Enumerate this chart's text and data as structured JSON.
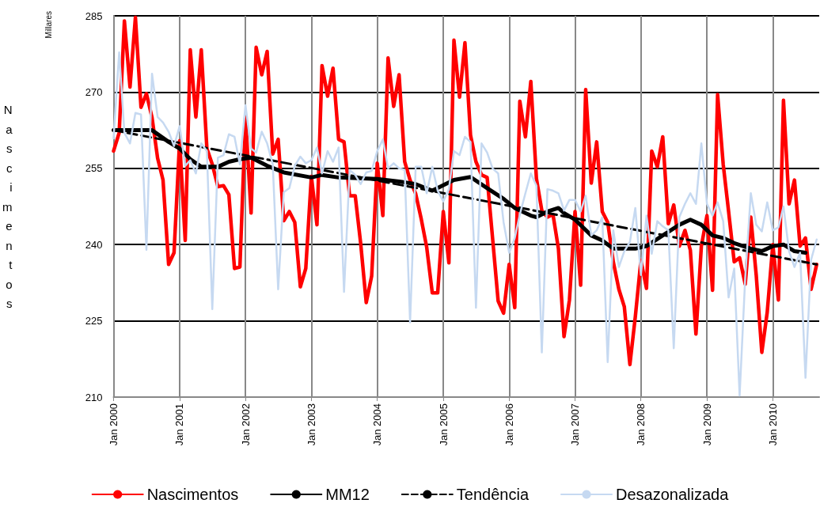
{
  "chart_data": {
    "type": "line",
    "ylabel": "Nascimentos",
    "annotations": [
      "Millares"
    ],
    "x": [
      "2000-01",
      "2000-02",
      "2000-03",
      "2000-04",
      "2000-05",
      "2000-06",
      "2000-07",
      "2000-08",
      "2000-09",
      "2000-10",
      "2000-11",
      "2000-12",
      "2001-01",
      "2001-02",
      "2001-03",
      "2001-04",
      "2001-05",
      "2001-06",
      "2001-07",
      "2001-08",
      "2001-09",
      "2001-10",
      "2001-11",
      "2001-12",
      "2002-01",
      "2002-02",
      "2002-03",
      "2002-04",
      "2002-05",
      "2002-06",
      "2002-07",
      "2002-08",
      "2002-09",
      "2002-10",
      "2002-11",
      "2002-12",
      "2003-01",
      "2003-02",
      "2003-03",
      "2003-04",
      "2003-05",
      "2003-06",
      "2003-07",
      "2003-08",
      "2003-09",
      "2003-10",
      "2003-11",
      "2003-12",
      "2004-01",
      "2004-02",
      "2004-03",
      "2004-04",
      "2004-05",
      "2004-06",
      "2004-07",
      "2004-08",
      "2004-09",
      "2004-10",
      "2004-11",
      "2004-12",
      "2005-01",
      "2005-02",
      "2005-03",
      "2005-04",
      "2005-05",
      "2005-06",
      "2005-07",
      "2005-08",
      "2005-09",
      "2005-10",
      "2005-11",
      "2005-12",
      "2006-01",
      "2006-02",
      "2006-03",
      "2006-04",
      "2006-05",
      "2006-06",
      "2006-07",
      "2006-08",
      "2006-09",
      "2006-10",
      "2006-11",
      "2006-12",
      "2007-01",
      "2007-02",
      "2007-03",
      "2007-04",
      "2007-05",
      "2007-06",
      "2007-07",
      "2007-08",
      "2007-09",
      "2007-10",
      "2007-11",
      "2007-12",
      "2008-01",
      "2008-02",
      "2008-03",
      "2008-04",
      "2008-05",
      "2008-06",
      "2008-07",
      "2008-08",
      "2008-09",
      "2008-10",
      "2008-11",
      "2008-12",
      "2009-01",
      "2009-02",
      "2009-03",
      "2009-04",
      "2009-05",
      "2009-06",
      "2009-07",
      "2009-08",
      "2009-09",
      "2009-10",
      "2009-11",
      "2009-12",
      "2010-01",
      "2010-02",
      "2010-03",
      "2010-04",
      "2010-05",
      "2010-06",
      "2010-07",
      "2010-08",
      "2010-09"
    ],
    "series": [
      {
        "name": "Nascimentos",
        "color": "#ff0000",
        "values": [
          258.4,
          262,
          284,
          271,
          284.7,
          267,
          269.7,
          265,
          257,
          252.7,
          236.1,
          238.4,
          260.4,
          240.8,
          278.3,
          265.1,
          278.3,
          258.9,
          255.8,
          251.4,
          251.6,
          249.8,
          235.3,
          235.6,
          265,
          246.2,
          278.8,
          273.4,
          278,
          257.8,
          260.7,
          244.7,
          246.5,
          244.4,
          231.7,
          235.3,
          253.4,
          243.9,
          275.2,
          269.2,
          274.7,
          260.7,
          260.2,
          249.6,
          249.6,
          240.3,
          228.6,
          233.8,
          256,
          245.7,
          276.7,
          267.2,
          273.4,
          256.3,
          252.7,
          250,
          245,
          239.5,
          230.5,
          230.5,
          246.5,
          236.4,
          280.2,
          269,
          279.7,
          261.5,
          256.3,
          253.7,
          253.2,
          241.3,
          228.9,
          226.5,
          236.1,
          227.6,
          268.2,
          261.2,
          272.1,
          253,
          246.7,
          245.4,
          245.9,
          239.2,
          221.9,
          229.1,
          246.5,
          232,
          270.5,
          252.1,
          260.2,
          246.5,
          244.4,
          236.6,
          231.2,
          227.8,
          216.4,
          225.8,
          236.9,
          231.4,
          258.4,
          255.3,
          261.2,
          244.1,
          247.8,
          239.7,
          242.8,
          238.9,
          222.4,
          239.7,
          245.7,
          231,
          269.5,
          255.8,
          246.5,
          236.6,
          237.4,
          232.2,
          245.4,
          234,
          218.8,
          226.7,
          240,
          229.1,
          268.4,
          248,
          252.7,
          239.7,
          241.3,
          231.2,
          236.1
        ]
      },
      {
        "name": "MM12",
        "color": "#000000",
        "x": [
          "2000-01",
          "2000-08",
          "2000-11",
          "2001-01",
          "2001-03",
          "2001-05",
          "2001-08",
          "2001-10",
          "2001-12",
          "2002-02",
          "2002-05",
          "2002-08",
          "2003-01",
          "2003-03",
          "2003-06",
          "2004-01",
          "2004-05",
          "2004-08",
          "2004-11",
          "2005-03",
          "2005-06",
          "2005-09",
          "2005-12",
          "2006-02",
          "2006-05",
          "2006-06",
          "2006-08",
          "2006-10",
          "2006-11",
          "2007-01",
          "2007-04",
          "2007-06",
          "2007-08",
          "2007-12",
          "2008-02",
          "2008-05",
          "2008-08",
          "2008-10",
          "2008-12",
          "2009-02",
          "2009-04",
          "2009-06",
          "2009-09",
          "2009-11",
          "2010-01",
          "2010-03",
          "2010-05",
          "2010-07"
        ],
        "values": [
          262.5,
          262.5,
          260.2,
          258.9,
          256.8,
          255.3,
          255.3,
          256.3,
          256.8,
          257.1,
          255.5,
          254.2,
          253.2,
          253.7,
          253.2,
          252.9,
          252.4,
          251.9,
          250.6,
          252.7,
          253.3,
          251.1,
          249,
          247.2,
          245.7,
          245.4,
          246.5,
          247.2,
          246.2,
          244.9,
          241.8,
          240.8,
          239.2,
          239.2,
          239.7,
          241.8,
          243.9,
          244.9,
          243.9,
          241.8,
          241.3,
          240.3,
          239.2,
          238.7,
          239.7,
          240,
          238.7,
          238.4
        ]
      },
      {
        "name": "Tendência",
        "color": "#000000",
        "line_style": "dashed",
        "x": [
          "2000-01",
          "2010-09"
        ],
        "values": [
          262.5,
          236.1
        ]
      },
      {
        "name": "Desazonalizada",
        "color": "#c6d9f1",
        "values": [
          260.9,
          277.8,
          262,
          259.9,
          265.9,
          265.6,
          239,
          273.6,
          265.1,
          264,
          262.2,
          259.4,
          263.3,
          255.5,
          256.6,
          254,
          259.9,
          258.4,
          227.3,
          257.1,
          257.6,
          261.7,
          261.2,
          255.8,
          267.4,
          258.9,
          258.1,
          262.2,
          259.9,
          255.8,
          231.2,
          250.3,
          251.1,
          255.5,
          257.3,
          256,
          256.6,
          259.1,
          254,
          258.4,
          256.3,
          259.1,
          230.7,
          254.7,
          253.7,
          251.9,
          254.2,
          254.5,
          258.4,
          260.7,
          255,
          256,
          255,
          254.7,
          224.7,
          255.3,
          255.3,
          250.1,
          255.3,
          250.6,
          248.5,
          250.9,
          258.4,
          257.6,
          261.2,
          260.2,
          227.6,
          259.9,
          258.1,
          255,
          254,
          244.4,
          238.4,
          241.3,
          245.9,
          250.1,
          254,
          251.6,
          218.8,
          250.9,
          250.6,
          250.1,
          246.7,
          248.8,
          248.8,
          246.5,
          249.6,
          241.8,
          242.8,
          245.4,
          216.9,
          242.8,
          235.6,
          238.7,
          240.5,
          247.2,
          234,
          245.7,
          238.2,
          244.6,
          243.6,
          242.8,
          219.6,
          245.4,
          248,
          250.1,
          248,
          259.9,
          248,
          245.7,
          248.3,
          244.6,
          229.6,
          235.3,
          210.3,
          233.5,
          250.1,
          243.9,
          242.6,
          248.3,
          242.8,
          243.4,
          247.5,
          238.7,
          235.6,
          238.4,
          213.8,
          237,
          241
        ]
      }
    ],
    "xlim": [
      "2000-01",
      "2010-09-15"
    ],
    "xticks": [
      {
        "value": "2000-01",
        "label": "Jan 2000"
      },
      {
        "value": "2001-01",
        "label": "Jan 2001"
      },
      {
        "value": "2002-01",
        "label": "Jan 2002"
      },
      {
        "value": "2003-01",
        "label": "Jan 2003"
      },
      {
        "value": "2004-01",
        "label": "Jan 2004"
      },
      {
        "value": "2005-01",
        "label": "Jan 2005"
      },
      {
        "value": "2006-01",
        "label": "Jan 2006"
      },
      {
        "value": "2007-01",
        "label": "Jan 2007"
      },
      {
        "value": "2008-01",
        "label": "Jan 2008"
      },
      {
        "value": "2009-01",
        "label": "Jan 2009"
      },
      {
        "value": "2010-01",
        "label": "Jan 2010"
      }
    ],
    "ylim": [
      210,
      285
    ],
    "yticks": [
      210,
      225,
      240,
      255,
      270,
      285
    ],
    "grid": true,
    "legend": "bottom",
    "marker": "none"
  }
}
